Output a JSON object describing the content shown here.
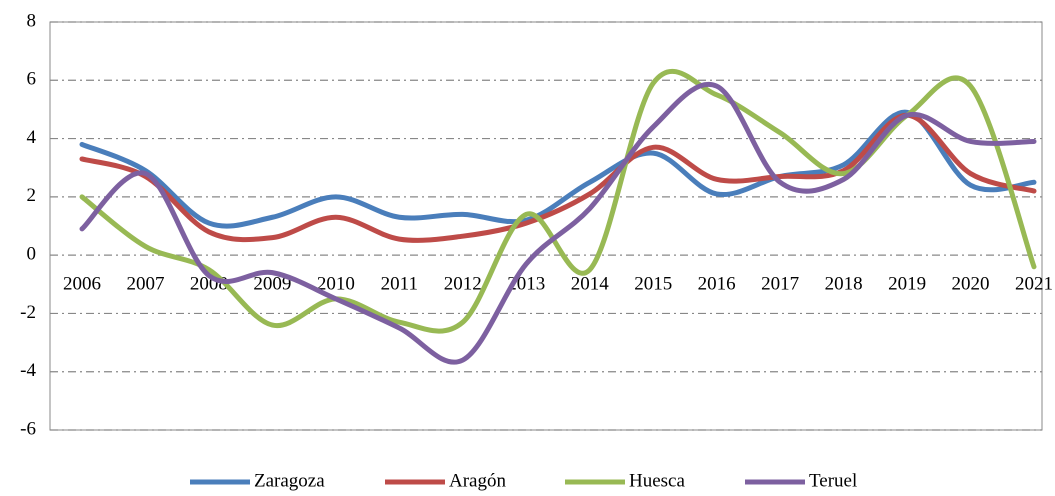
{
  "chart_data": {
    "type": "line",
    "categories": [
      "2006",
      "2007",
      "2008",
      "2009",
      "2010",
      "2011",
      "2012",
      "2013",
      "2014",
      "2015",
      "2016",
      "2017",
      "2018",
      "2019",
      "2020",
      "2021"
    ],
    "series": [
      {
        "name": "Zaragoza",
        "color": "#4a7ebb",
        "values": [
          3.8,
          2.9,
          1.1,
          1.3,
          2.0,
          1.3,
          1.4,
          1.2,
          2.5,
          3.5,
          2.1,
          2.7,
          3.1,
          4.9,
          2.4,
          2.5
        ]
      },
      {
        "name": "Aragón",
        "color": "#be4b48",
        "values": [
          3.3,
          2.7,
          0.8,
          0.6,
          1.3,
          0.55,
          0.65,
          1.1,
          2.1,
          3.7,
          2.6,
          2.7,
          2.9,
          4.8,
          2.8,
          2.2
        ]
      },
      {
        "name": "Huesca",
        "color": "#98b954",
        "values": [
          2.0,
          0.3,
          -0.5,
          -2.4,
          -1.5,
          -2.3,
          -2.3,
          1.4,
          -0.5,
          5.9,
          5.5,
          4.2,
          2.8,
          4.8,
          5.8,
          -0.4
        ]
      },
      {
        "name": "Teruel",
        "color": "#7d60a0",
        "values": [
          0.9,
          2.8,
          -0.7,
          -0.6,
          -1.5,
          -2.5,
          -3.6,
          -0.3,
          1.6,
          4.4,
          5.8,
          2.5,
          2.6,
          4.8,
          3.9,
          3.9
        ]
      }
    ],
    "ylim": [
      -6,
      8
    ],
    "yticks": [
      -6,
      -4,
      -2,
      0,
      2,
      4,
      6,
      8
    ],
    "grid": true,
    "legend": "bottom"
  }
}
